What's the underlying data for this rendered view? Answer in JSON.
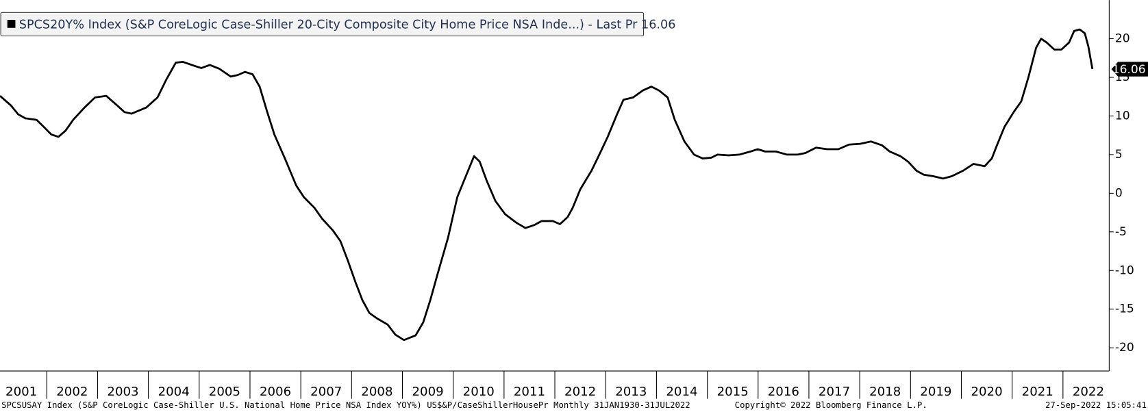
{
  "chart_data": {
    "type": "line",
    "series": [
      {
        "name": "SPCS20Y% Index (S&P CoreLogic Case-Shiller 20-City Composite City Home Price NSA Inde...) - Last Pr 16.06",
        "color": "#000000",
        "x": [
          2001.08,
          2001.29,
          2001.44,
          2001.58,
          2001.8,
          2001.94,
          2002.09,
          2002.23,
          2002.37,
          2002.52,
          2002.73,
          2002.95,
          2003.17,
          2003.38,
          2003.53,
          2003.67,
          2003.96,
          2004.18,
          2004.36,
          2004.54,
          2004.68,
          2004.9,
          2005.04,
          2005.21,
          2005.4,
          2005.62,
          2005.76,
          2005.9,
          2006.05,
          2006.19,
          2006.34,
          2006.48,
          2006.7,
          2006.91,
          2007.06,
          2007.27,
          2007.42,
          2007.63,
          2007.78,
          2007.92,
          2008.07,
          2008.21,
          2008.35,
          2008.5,
          2008.71,
          2008.86,
          2009.03,
          2009.26,
          2009.41,
          2009.55,
          2009.69,
          2009.9,
          2010.08,
          2010.26,
          2010.41,
          2010.52,
          2010.66,
          2010.83,
          2011.02,
          2011.24,
          2011.42,
          2011.6,
          2011.74,
          2011.96,
          2012.1,
          2012.25,
          2012.35,
          2012.5,
          2012.72,
          2012.89,
          2013.04,
          2013.21,
          2013.35,
          2013.54,
          2013.73,
          2013.9,
          2014.05,
          2014.22,
          2014.36,
          2014.55,
          2014.74,
          2014.91,
          2015.08,
          2015.2,
          2015.42,
          2015.63,
          2015.85,
          2015.99,
          2016.14,
          2016.35,
          2016.57,
          2016.78,
          2016.93,
          2017.14,
          2017.36,
          2017.58,
          2017.79,
          2018.01,
          2018.22,
          2018.44,
          2018.59,
          2018.8,
          2018.95,
          2019.12,
          2019.26,
          2019.45,
          2019.64,
          2019.81,
          2020.03,
          2020.24,
          2020.46,
          2020.6,
          2020.7,
          2020.85,
          2021.03,
          2021.18,
          2021.32,
          2021.47,
          2021.57,
          2021.68,
          2021.83,
          2021.97,
          2022.12,
          2022.22,
          2022.33,
          2022.43,
          2022.5,
          2022.58
        ],
        "values": [
          12.6,
          11.4,
          10.2,
          9.7,
          9.5,
          8.6,
          7.6,
          7.3,
          8.1,
          9.5,
          11.0,
          12.4,
          12.6,
          11.4,
          10.5,
          10.3,
          11.1,
          12.4,
          14.8,
          16.9,
          17.0,
          16.5,
          16.2,
          16.6,
          16.1,
          15.1,
          15.3,
          15.7,
          15.4,
          13.8,
          10.5,
          7.6,
          4.3,
          1.0,
          -0.5,
          -1.9,
          -3.3,
          -4.8,
          -6.2,
          -8.6,
          -11.4,
          -13.8,
          -15.5,
          -16.2,
          -17.0,
          -18.3,
          -19.0,
          -18.4,
          -16.7,
          -13.8,
          -10.5,
          -5.7,
          -0.5,
          2.4,
          4.8,
          4.1,
          1.6,
          -1.0,
          -2.7,
          -3.8,
          -4.5,
          -4.1,
          -3.6,
          -3.6,
          -4.0,
          -3.1,
          -1.9,
          0.5,
          2.9,
          5.2,
          7.3,
          10.0,
          12.1,
          12.4,
          13.3,
          13.8,
          13.3,
          12.4,
          9.5,
          6.7,
          5.0,
          4.5,
          4.6,
          5.0,
          4.9,
          5.0,
          5.4,
          5.7,
          5.4,
          5.4,
          5.0,
          5.0,
          5.2,
          5.9,
          5.7,
          5.7,
          6.3,
          6.4,
          6.7,
          6.2,
          5.4,
          4.8,
          4.1,
          2.9,
          2.4,
          2.2,
          1.9,
          2.2,
          2.9,
          3.8,
          3.5,
          4.5,
          6.2,
          8.6,
          10.5,
          11.9,
          15.0,
          18.8,
          20.0,
          19.5,
          18.6,
          18.6,
          19.5,
          21.0,
          21.2,
          20.7,
          19.0,
          16.06
        ]
      }
    ],
    "xlim": [
      2001.08,
      2022.91
    ],
    "xticks": [
      2001,
      2002,
      2003,
      2004,
      2005,
      2006,
      2007,
      2008,
      2009,
      2010,
      2011,
      2012,
      2013,
      2014,
      2015,
      2016,
      2017,
      2018,
      2019,
      2020,
      2021,
      2022
    ],
    "ylim": [
      -23,
      25
    ],
    "yticks": [
      -20,
      -15,
      -10,
      -5,
      0,
      5,
      10,
      15,
      20
    ],
    "y_axis_side": "right",
    "footer_left": "SPCSUSAY Index (S&P CoreLogic Case-Shiller U.S. National Home Price NSA Index YOY%) US$&P/CaseShillerHousePr  Monthly 31JAN1930-31JUL2022",
    "footer_center": "Copyright© 2022 Bloomberg Finance L.P.",
    "footer_right": "27-Sep-2022 15:05:41"
  }
}
